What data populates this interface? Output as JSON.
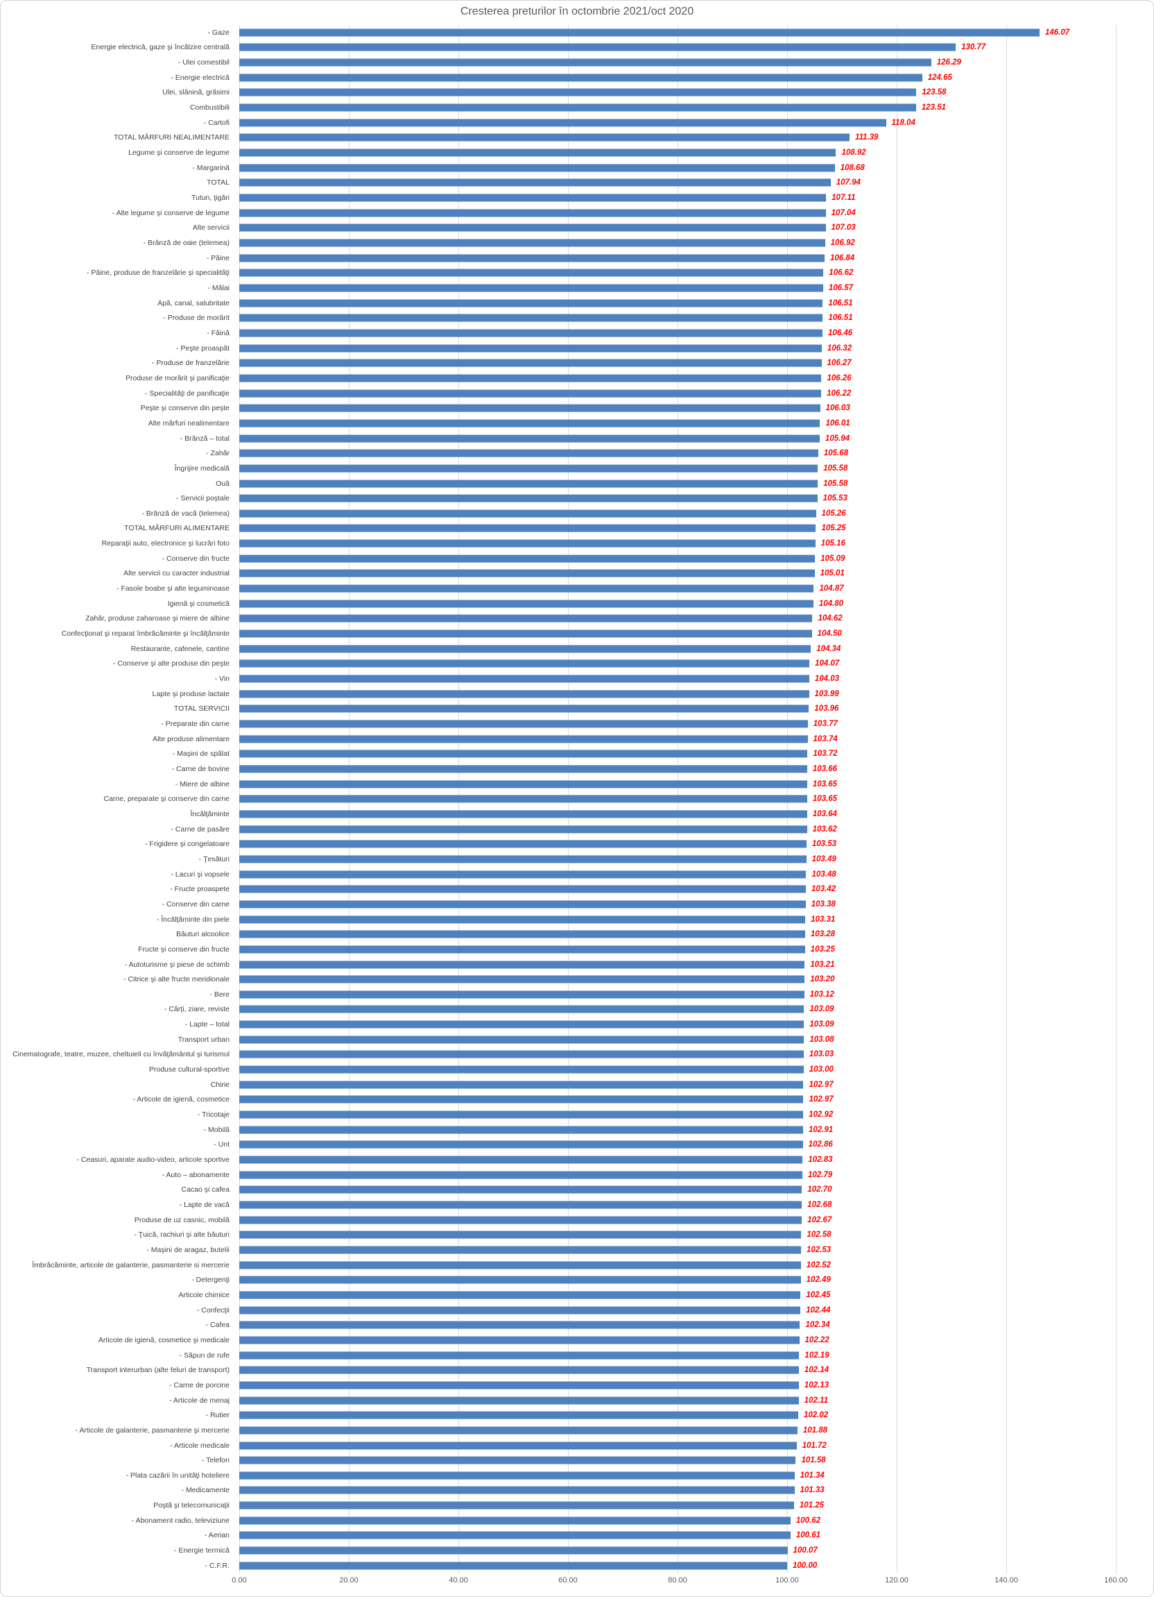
{
  "chart_data": {
    "type": "bar",
    "orientation": "horizontal",
    "title": "Cresterea preturilor  în octombrie 2021/oct 2020",
    "categories": [
      "- Gaze",
      "Energie electrică, gaze şi încălzire centrală",
      "- Ulei comestibil",
      "- Energie electrică",
      "Ulei, slănină, grăsimi",
      "Combustibili",
      "- Cartofi",
      "TOTAL MĂRFURI NEALIMENTARE",
      "Legume şi conserve de legume",
      "- Margarină",
      "TOTAL",
      "Tutun, ţigări",
      "- Alte legume şi conserve de legume",
      "Alte servicii",
      "- Brânză de oaie (telemea)",
      "- Pâine",
      "- Pâine, produse de franzelărie şi specialităţi",
      "- Mălai",
      "Apă, canal, salubritate",
      "- Produse de morărit",
      "- Făină",
      "- Peşte proaspăt",
      "- Produse de franzelărie",
      "Produse de morărit şi panificaţie",
      "- Specialităţi de panificaţie",
      "Peşte şi conserve din peşte",
      "Alte mărfuri nealimentare",
      "- Brânză – total",
      "- Zahăr",
      "Îngrijire medicală",
      "Ouă",
      "- Servicii poştale",
      "- Brânză de vacă (telemea)",
      "TOTAL MĂRFURI ALIMENTARE",
      "Reparaţii auto, electronice şi lucrări foto",
      "- Conserve din fructe",
      "Alte servicii cu caracter industrial",
      "- Fasole boabe şi alte leguminoase",
      "Igienă şi cosmetică",
      "Zahăr, produse zaharoase şi miere de albine",
      "Confecţionat şi reparat îmbrăcăminte şi încălţăminte",
      "Restaurante, cafenele, cantine",
      "- Conserve şi alte produse din peşte",
      "- Vin",
      "Lapte şi produse lactate",
      "TOTAL SERVICII",
      "- Preparate din carne",
      "Alte produse alimentare",
      "- Maşini de spălat",
      "- Carne de bovine",
      "- Miere de albine",
      "Carne, preparate şi conserve din carne",
      "Încălţăminte",
      "- Carne de pasăre",
      "- Frigidere şi congelatoare",
      "- Ţesături",
      "- Lacuri şi vopsele",
      "- Fructe proaspete",
      "- Conserve din carne",
      "- Încălţăminte din piele",
      "Băuturi alcoolice",
      "Fructe şi conserve din fructe",
      "- Autoturisme şi piese de schimb",
      "- Citrice şi alte fructe meridionale",
      "- Bere",
      "- Cărţi, ziare, reviste",
      "- Lapte – total",
      "Transport urban",
      "Cinematografe, teatre, muzee, cheltuieli cu  învăţământul şi turismul",
      "Produse cultural-sportive",
      "Chirie",
      "- Articole de igienă, cosmetice",
      "- Tricotaje",
      "- Mobilă",
      "- Unt",
      "- Ceasuri, aparate audio-video, articole sportive",
      "- Auto – abonamente",
      "Cacao şi cafea",
      "- Lapte de vacă",
      "Produse de uz casnic, mobilă",
      "- Ţuică, rachiuri şi alte băuturi",
      "- Maşini de aragaz, butelii",
      "Îmbrăcăminte, articole de galanterie, pasmanterie si mercerie",
      "- Detergenţi",
      "Articole chimice",
      "- Confecţii",
      "- Cafea",
      "Articole de igienă, cosmetice şi medicale",
      "- Săpun de rufe",
      "Transport interurban (alte feluri de transport)",
      "- Carne de porcine",
      "- Articole de menaj",
      "- Rutier",
      "- Articole de galanterie, pasmanterie şi mercerie",
      "- Articole medicale",
      "- Telefon",
      "- Plata cazării în unităţi hoteliere",
      "- Medicamente",
      "Poştă şi telecomunicaţii",
      "- Abonament radio, televiziune",
      "- Aerian",
      "- Energie termică",
      "- C.F.R."
    ],
    "values": [
      146.07,
      130.77,
      126.29,
      124.65,
      123.58,
      123.51,
      118.04,
      111.39,
      108.92,
      108.68,
      107.94,
      107.11,
      107.04,
      107.03,
      106.92,
      106.84,
      106.62,
      106.57,
      106.51,
      106.51,
      106.46,
      106.32,
      106.27,
      106.26,
      106.22,
      106.03,
      106.01,
      105.94,
      105.68,
      105.58,
      105.58,
      105.53,
      105.26,
      105.25,
      105.16,
      105.09,
      105.01,
      104.87,
      104.8,
      104.62,
      104.5,
      104.34,
      104.07,
      104.03,
      103.99,
      103.96,
      103.77,
      103.74,
      103.72,
      103.66,
      103.65,
      103.65,
      103.64,
      103.62,
      103.53,
      103.49,
      103.48,
      103.42,
      103.38,
      103.31,
      103.28,
      103.25,
      103.21,
      103.2,
      103.12,
      103.09,
      103.09,
      103.08,
      103.03,
      103.0,
      102.97,
      102.97,
      102.92,
      102.91,
      102.86,
      102.83,
      102.79,
      102.7,
      102.68,
      102.67,
      102.58,
      102.53,
      102.52,
      102.49,
      102.45,
      102.44,
      102.34,
      102.22,
      102.19,
      102.14,
      102.13,
      102.11,
      102.02,
      101.88,
      101.72,
      101.58,
      101.34,
      101.33,
      101.25,
      100.62,
      100.61,
      100.07,
      100.0
    ],
    "value_label_format": "2-decimals",
    "xlabel": "",
    "ylabel": "",
    "xlim": [
      0,
      160
    ],
    "xticks": [
      0,
      20,
      40,
      60,
      80,
      100,
      120,
      140,
      160
    ],
    "xtick_labels": [
      "0.00",
      "20.00",
      "40.00",
      "60.00",
      "80.00",
      "100.00",
      "120.00",
      "140.00",
      "160.00"
    ],
    "grid": true,
    "legend": false,
    "bar_color": "#4e81bd",
    "value_label_color": "#ff0000",
    "title_color": "#595959",
    "gridline_color": "#d9d9d9"
  }
}
